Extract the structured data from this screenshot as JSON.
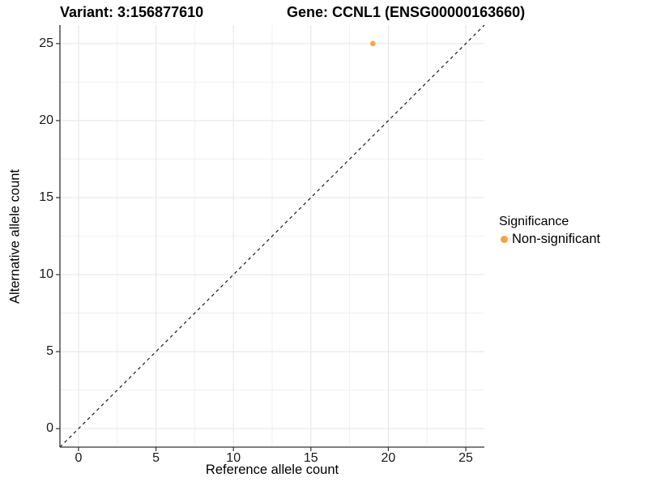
{
  "chart_data": {
    "type": "scatter",
    "title_left": "Variant: 3:156877610",
    "title_right": "Gene: CCNL1 (ENSG00000163660)",
    "xlabel": "Reference allele count",
    "ylabel": "Alternative allele count",
    "x_ticks": [
      0,
      5,
      10,
      15,
      20,
      25
    ],
    "y_ticks": [
      0,
      5,
      10,
      15,
      20,
      25
    ],
    "xlim": [
      -1.2,
      26.2
    ],
    "ylim": [
      -1.2,
      26.2
    ],
    "points": [
      {
        "x": 19,
        "y": 25,
        "series": "Non-significant"
      }
    ],
    "identity_line": {
      "style": "dashed",
      "from": -1.2,
      "to": 26.2
    },
    "legend": {
      "title": "Significance",
      "position": "right",
      "entries": [
        {
          "label": "Non-significant",
          "color": "#F9A242"
        }
      ]
    },
    "grid": {
      "major": true,
      "minor": true
    },
    "colors": {
      "point": "#F9A242",
      "grid_major": "#E4E4E4",
      "grid_minor": "#F0F0F0",
      "axis": "#333333",
      "identity_line": "#1a1a1a"
    }
  }
}
